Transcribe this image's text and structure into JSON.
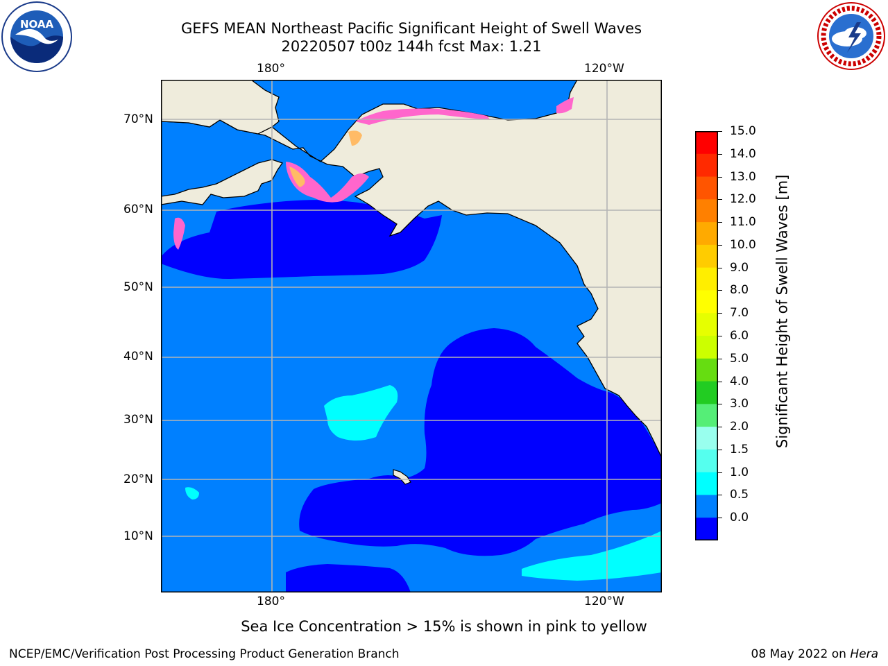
{
  "title": {
    "line1": "GEFS MEAN Northeast Pacific Significant Height of Swell Waves",
    "line2": "20220507 t00z 144h fcst   Max: 1.21"
  },
  "axes": {
    "top_lon": [
      "180°",
      "120°W"
    ],
    "bottom_lon": [
      "180°",
      "120°W"
    ],
    "lat": [
      "70°N",
      "60°N",
      "50°N",
      "40°N",
      "30°N",
      "20°N",
      "10°N"
    ]
  },
  "colorbar": {
    "label": "Significant Height of Swell Waves [m]",
    "ticks": [
      "15.0",
      "14.0",
      "13.0",
      "12.0",
      "11.0",
      "10.0",
      "9.0",
      "8.0",
      "7.0",
      "6.0",
      "5.0",
      "4.0",
      "3.0",
      "2.0",
      "1.5",
      "1.0",
      "0.5",
      "0.0"
    ],
    "colors": [
      "#ff0000",
      "#ff2a00",
      "#ff5500",
      "#ff8000",
      "#ffaa00",
      "#ffcc00",
      "#ffee00",
      "#ffff00",
      "#e6ff00",
      "#ccff00",
      "#66dd11",
      "#22cc22",
      "#55ee77",
      "#99ffee",
      "#55ffee",
      "#00ffff",
      "#0080ff",
      "#0000ff"
    ]
  },
  "colors": {
    "land": "#efecdc",
    "swell_low": "#0000ff",
    "swell_mid": "#0080ff",
    "swell_high": "#00ffff",
    "ice_pink": "#ff66cc",
    "ice_orange": "#ffbb66",
    "grid": "#b4b4b4"
  },
  "map_labels": {
    "note": "Sea Ice Concentration > 15% is shown in pink to yellow"
  },
  "footer": {
    "left": "NCEP/EMC/Verification Post Processing Product Generation Branch",
    "right_prefix": "08 May 2022 on ",
    "right_host": "Hera"
  },
  "logos": {
    "noaa_text": "NOAA",
    "nws_text": "NATIONAL WEATHER SERVICE",
    "noaa_icon": "noaa-logo-icon",
    "nws_icon": "nws-logo-icon"
  }
}
